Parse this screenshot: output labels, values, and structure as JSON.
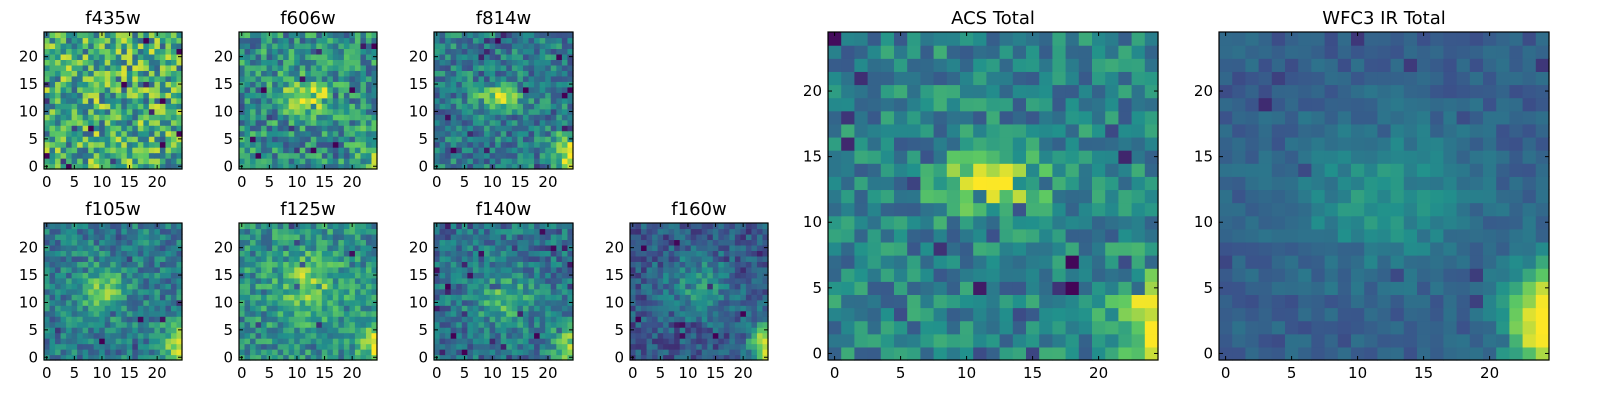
{
  "chart_data": {
    "type": "heatmap",
    "colormap": "viridis",
    "colors": {
      "viridis": [
        "#440154",
        "#3b528b",
        "#21918c",
        "#5ec962",
        "#fde725"
      ]
    },
    "grid_size": 25,
    "panels": [
      {
        "id": "f435w",
        "title": "f435w",
        "xticks": [
          "0",
          "5",
          "10",
          "15",
          "20"
        ],
        "yticks": [
          "0",
          "5",
          "10",
          "15",
          "20"
        ],
        "xlim": [
          0,
          25
        ],
        "ylim": [
          0,
          25
        ],
        "noise": 0.55,
        "base": 0.62,
        "blob": {
          "cx": 12,
          "cy": 13,
          "amp": 0.0,
          "sx": 3,
          "sy": 1.5
        },
        "corner": 0.0
      },
      {
        "id": "f606w",
        "title": "f606w",
        "xticks": [
          "0",
          "5",
          "10",
          "15",
          "20"
        ],
        "yticks": [
          "0",
          "5",
          "10",
          "15",
          "20"
        ],
        "xlim": [
          0,
          25
        ],
        "ylim": [
          0,
          25
        ],
        "noise": 0.42,
        "base": 0.5,
        "blob": {
          "cx": 12,
          "cy": 13,
          "amp": 0.45,
          "sx": 3,
          "sy": 1.8
        },
        "corner": 0.25
      },
      {
        "id": "f814w",
        "title": "f814w",
        "xticks": [
          "0",
          "5",
          "10",
          "15",
          "20"
        ],
        "yticks": [
          "0",
          "5",
          "10",
          "15",
          "20"
        ],
        "xlim": [
          0,
          25
        ],
        "ylim": [
          0,
          25
        ],
        "noise": 0.34,
        "base": 0.42,
        "blob": {
          "cx": 11,
          "cy": 12.5,
          "amp": 0.55,
          "sx": 2.5,
          "sy": 1.3
        },
        "corner": 0.6
      },
      {
        "id": "f105w",
        "title": "f105w",
        "xticks": [
          "0",
          "5",
          "10",
          "15",
          "20"
        ],
        "yticks": [
          "0",
          "5",
          "10",
          "15",
          "20"
        ],
        "xlim": [
          0,
          25
        ],
        "ylim": [
          0,
          25
        ],
        "noise": 0.3,
        "base": 0.42,
        "blob": {
          "cx": 10,
          "cy": 12,
          "amp": 0.35,
          "sx": 3,
          "sy": 3
        },
        "corner": 0.6
      },
      {
        "id": "f125w",
        "title": "f125w",
        "xticks": [
          "0",
          "5",
          "10",
          "15",
          "20"
        ],
        "yticks": [
          "0",
          "5",
          "10",
          "15",
          "20"
        ],
        "xlim": [
          0,
          25
        ],
        "ylim": [
          0,
          25
        ],
        "noise": 0.34,
        "base": 0.5,
        "blob": {
          "cx": 12,
          "cy": 13,
          "amp": 0.3,
          "sx": 4,
          "sy": 4
        },
        "corner": 0.5
      },
      {
        "id": "f140w",
        "title": "f140w",
        "xticks": [
          "0",
          "5",
          "10",
          "15",
          "20"
        ],
        "yticks": [
          "0",
          "5",
          "10",
          "15",
          "20"
        ],
        "xlim": [
          0,
          25
        ],
        "ylim": [
          0,
          25
        ],
        "noise": 0.3,
        "base": 0.38,
        "blob": {
          "cx": 12,
          "cy": 11,
          "amp": 0.3,
          "sx": 3.5,
          "sy": 3.5
        },
        "corner": 0.6
      },
      {
        "id": "f160w",
        "title": "f160w",
        "xticks": [
          "0",
          "5",
          "10",
          "15",
          "20"
        ],
        "yticks": [
          "0",
          "5",
          "10",
          "15",
          "20"
        ],
        "xlim": [
          0,
          25
        ],
        "ylim": [
          0,
          25
        ],
        "noise": 0.24,
        "base": 0.28,
        "blob": {
          "cx": 12,
          "cy": 13,
          "amp": 0.25,
          "sx": 4,
          "sy": 4
        },
        "corner": 0.75
      },
      {
        "id": "acs_total",
        "title": "ACS Total",
        "xticks": [
          "0",
          "5",
          "10",
          "15",
          "20"
        ],
        "yticks": [
          "0",
          "5",
          "10",
          "15",
          "20"
        ],
        "xlim": [
          0,
          25
        ],
        "ylim": [
          0,
          25
        ],
        "noise": 0.3,
        "base": 0.45,
        "blob": {
          "cx": 12,
          "cy": 13,
          "amp": 0.5,
          "sx": 2.8,
          "sy": 1.5
        },
        "corner": 0.55
      },
      {
        "id": "wfc3_total",
        "title": "WFC3 IR Total",
        "xticks": [
          "0",
          "5",
          "10",
          "15",
          "20"
        ],
        "yticks": [
          "0",
          "5",
          "10",
          "15",
          "20"
        ],
        "xlim": [
          0,
          25
        ],
        "ylim": [
          0,
          25
        ],
        "noise": 0.12,
        "base": 0.3,
        "blob": {
          "cx": 12,
          "cy": 12,
          "amp": 0.22,
          "sx": 5,
          "sy": 4
        },
        "corner": 0.85
      }
    ]
  }
}
